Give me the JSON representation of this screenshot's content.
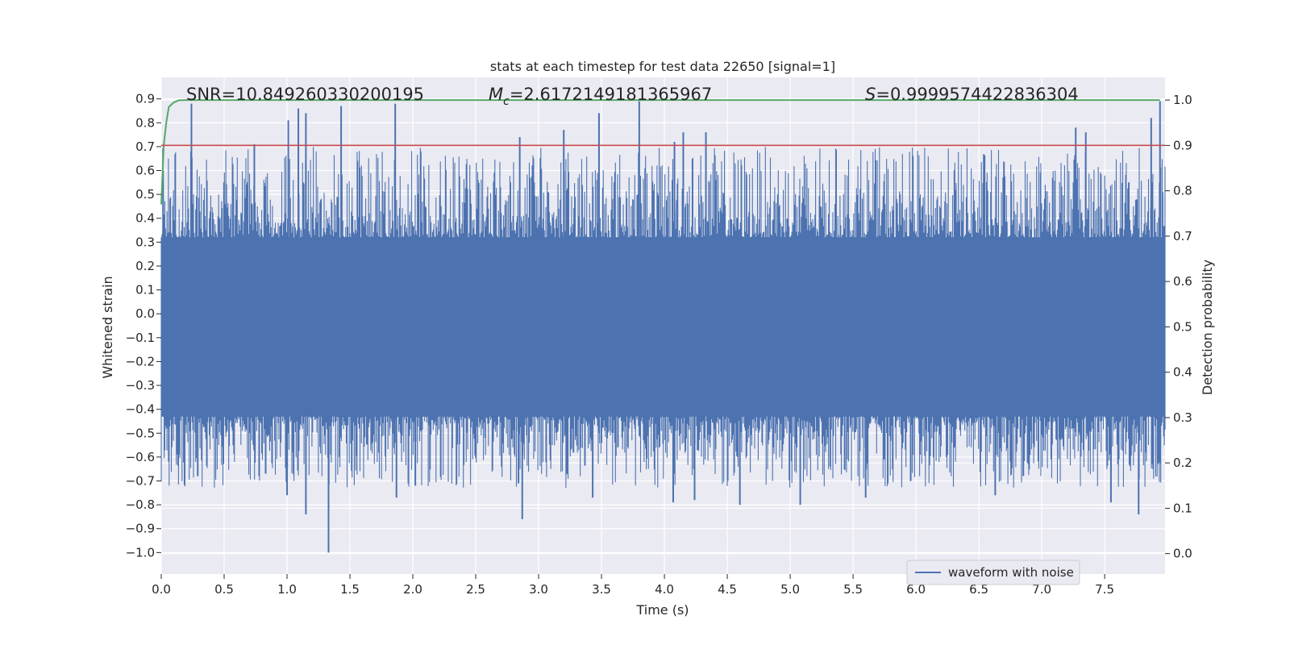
{
  "chart_data": {
    "type": "line",
    "title": "stats at each timestep for test data 22650 [signal=1]",
    "xlabel": "Time (s)",
    "ylabel": "Whitened strain",
    "y2label": "Detection probability",
    "xlim": [
      0.0,
      7.98
    ],
    "ylim": [
      -1.09,
      0.99
    ],
    "y2lim": [
      -0.045,
      1.05
    ],
    "xticks": [
      0.0,
      0.5,
      1.0,
      1.5,
      2.0,
      2.5,
      3.0,
      3.5,
      4.0,
      4.5,
      5.0,
      5.5,
      6.0,
      6.5,
      7.0,
      7.5
    ],
    "xtick_labels": [
      "0.0",
      "0.5",
      "1.0",
      "1.5",
      "2.0",
      "2.5",
      "3.0",
      "3.5",
      "4.0",
      "4.5",
      "5.0",
      "5.5",
      "6.0",
      "6.5",
      "7.0",
      "7.5"
    ],
    "yticks": [
      0.9,
      0.8,
      0.7,
      0.6,
      0.5,
      0.4,
      0.3,
      0.2,
      0.1,
      0.0,
      -0.1,
      -0.2,
      -0.3,
      -0.4,
      -0.5,
      -0.6,
      -0.7,
      -0.8,
      -0.9,
      -1.0
    ],
    "ytick_labels": [
      "0.9",
      "0.8",
      "0.7",
      "0.6",
      "0.5",
      "0.4",
      "0.3",
      "0.2",
      "0.1",
      "0.0",
      "−0.1",
      "−0.2",
      "−0.3",
      "−0.4",
      "−0.5",
      "−0.6",
      "−0.7",
      "−0.8",
      "−0.9",
      "−1.0"
    ],
    "y2ticks": [
      1.0,
      0.9,
      0.8,
      0.7,
      0.6,
      0.5,
      0.4,
      0.3,
      0.2,
      0.1,
      0.0
    ],
    "y2tick_labels": [
      "1.0",
      "0.9",
      "0.8",
      "0.7",
      "0.6",
      "0.5",
      "0.4",
      "0.3",
      "0.2",
      "0.1",
      "0.0"
    ],
    "grid": true,
    "legend": {
      "location": "lower-right",
      "entries": [
        "waveform with noise"
      ]
    },
    "annotations": {
      "snr": "SNR=10.849260330200195",
      "mc_symbol": "M",
      "mc_subscript": "c",
      "mc_value": "=2.6172149181365967",
      "s_symbol": "S",
      "s_value": "=0.9999574422836304"
    },
    "threshold": {
      "axis": "y2",
      "value": 0.9
    },
    "series": [
      {
        "name": "waveform with noise",
        "axis": "y",
        "style": "dense noise, bursts",
        "duration": 7.98,
        "band_upper": 0.32,
        "band_lower": -0.43,
        "peaks": [
          {
            "t": 0.24,
            "v": 0.88
          },
          {
            "t": 0.74,
            "v": 0.71
          },
          {
            "t": 1.01,
            "v": 0.81
          },
          {
            "t": 1.09,
            "v": 0.86
          },
          {
            "t": 1.15,
            "v": 0.84
          },
          {
            "t": 1.43,
            "v": 0.87
          },
          {
            "t": 1.86,
            "v": 0.88
          },
          {
            "t": 2.85,
            "v": 0.74
          },
          {
            "t": 3.2,
            "v": 0.77
          },
          {
            "t": 3.48,
            "v": 0.84
          },
          {
            "t": 3.8,
            "v": 0.89
          },
          {
            "t": 4.08,
            "v": 0.72
          },
          {
            "t": 4.15,
            "v": 0.76
          },
          {
            "t": 4.33,
            "v": 0.76
          },
          {
            "t": 7.27,
            "v": 0.78
          },
          {
            "t": 7.35,
            "v": 0.76
          },
          {
            "t": 7.87,
            "v": 0.82
          },
          {
            "t": 7.94,
            "v": 0.89
          }
        ],
        "troughs": [
          {
            "t": 0.29,
            "v": -0.68
          },
          {
            "t": 0.83,
            "v": -0.67
          },
          {
            "t": 1.0,
            "v": -0.76
          },
          {
            "t": 1.15,
            "v": -0.84
          },
          {
            "t": 1.33,
            "v": -1.0
          },
          {
            "t": 1.87,
            "v": -0.77
          },
          {
            "t": 2.02,
            "v": -0.72
          },
          {
            "t": 2.84,
            "v": -0.71
          },
          {
            "t": 2.87,
            "v": -0.86
          },
          {
            "t": 3.43,
            "v": -0.77
          },
          {
            "t": 4.07,
            "v": -0.79
          },
          {
            "t": 4.24,
            "v": -0.78
          },
          {
            "t": 4.6,
            "v": -0.8
          },
          {
            "t": 5.08,
            "v": -0.8
          },
          {
            "t": 5.6,
            "v": -0.77
          },
          {
            "t": 6.63,
            "v": -0.76
          },
          {
            "t": 7.55,
            "v": -0.79
          },
          {
            "t": 7.77,
            "v": -0.84
          }
        ]
      },
      {
        "name": "detection probability",
        "axis": "y2",
        "x": [
          0.0,
          0.02,
          0.04,
          0.06,
          0.1,
          0.14,
          0.2,
          1.0,
          3.0,
          5.0,
          7.0,
          7.94
        ],
        "values": [
          0.77,
          0.9,
          0.95,
          0.985,
          0.995,
          0.9995,
          1.0,
          1.0,
          1.0,
          1.0,
          1.0,
          1.0
        ]
      }
    ]
  },
  "colors": {
    "plot_bg": "#EAEAF2",
    "grid": "#FFFFFF",
    "waveform": "#4C72B0",
    "probability": "#55A868",
    "threshold": "#C44E52",
    "text": "#262626"
  }
}
